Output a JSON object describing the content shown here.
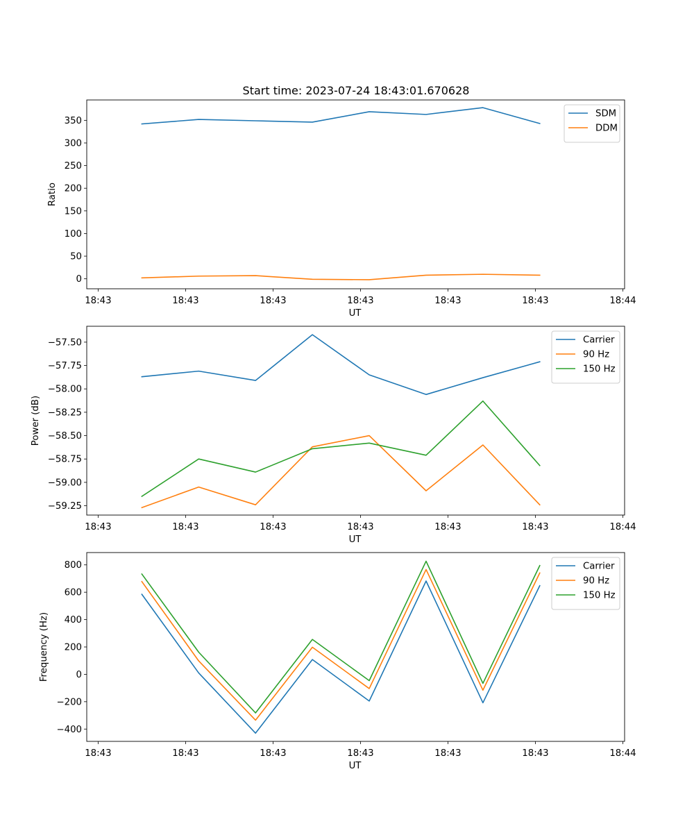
{
  "figure_title": "Start time: 2023-07-24 18:43:01.670628",
  "chart_data": [
    {
      "type": "line",
      "title": "Start time: 2023-07-24 18:43:01.670628",
      "xlabel": "UT",
      "ylabel": "Ratio",
      "x_ticks": [
        "18:43",
        "18:43",
        "18:43",
        "18:43",
        "18:43",
        "18:43",
        "18:44"
      ],
      "x_tick_positions": [
        0,
        1,
        2,
        3,
        4,
        5,
        6
      ],
      "x": [
        0.5,
        1.15,
        1.8,
        2.45,
        3.1,
        3.75,
        4.4,
        5.05
      ],
      "xlim": [
        -0.13,
        6.02
      ],
      "ylim": [
        -22,
        395
      ],
      "y_ticks": [
        0,
        50,
        100,
        150,
        200,
        250,
        300,
        350
      ],
      "legend_location": "upper right",
      "series": [
        {
          "name": "SDM",
          "color": "#1f77b4",
          "values": [
            342,
            352,
            349,
            346,
            369,
            363,
            378,
            343
          ]
        },
        {
          "name": "DDM",
          "color": "#ff7f0e",
          "values": [
            2,
            6,
            7,
            -1,
            -2,
            8,
            10,
            8
          ]
        }
      ]
    },
    {
      "type": "line",
      "title": "",
      "xlabel": "UT",
      "ylabel": "Power (dB)",
      "x_ticks": [
        "18:43",
        "18:43",
        "18:43",
        "18:43",
        "18:43",
        "18:43",
        "18:44"
      ],
      "x_tick_positions": [
        0,
        1,
        2,
        3,
        4,
        5,
        6
      ],
      "x": [
        0.5,
        1.15,
        1.8,
        2.45,
        3.1,
        3.75,
        4.4,
        5.05
      ],
      "xlim": [
        -0.13,
        6.02
      ],
      "ylim": [
        -59.35,
        -57.33
      ],
      "y_ticks": [
        -59.25,
        -59.0,
        -58.75,
        -58.5,
        -58.25,
        -58.0,
        -57.75,
        -57.5
      ],
      "y_tick_labels": [
        "−59.25",
        "−59.00",
        "−58.75",
        "−58.50",
        "−58.25",
        "−58.00",
        "−57.75",
        "−57.50"
      ],
      "legend_location": "upper right",
      "series": [
        {
          "name": "Carrier",
          "color": "#1f77b4",
          "values": [
            -57.87,
            -57.81,
            -57.91,
            -57.42,
            -57.85,
            -58.06,
            -57.88,
            -57.71
          ]
        },
        {
          "name": "90 Hz",
          "color": "#ff7f0e",
          "values": [
            -59.27,
            -59.05,
            -59.24,
            -58.62,
            -58.5,
            -59.09,
            -58.6,
            -59.24
          ]
        },
        {
          "name": "150 Hz",
          "color": "#2ca02c",
          "values": [
            -59.15,
            -58.75,
            -58.89,
            -58.64,
            -58.58,
            -58.71,
            -58.13,
            -58.82
          ]
        }
      ]
    },
    {
      "type": "line",
      "title": "",
      "xlabel": "UT",
      "ylabel": "Frequency (Hz)",
      "x_ticks": [
        "18:43",
        "18:43",
        "18:43",
        "18:43",
        "18:43",
        "18:43",
        "18:44"
      ],
      "x_tick_positions": [
        0,
        1,
        2,
        3,
        4,
        5,
        6
      ],
      "x": [
        0.5,
        1.15,
        1.8,
        2.45,
        3.1,
        3.75,
        4.4,
        5.05
      ],
      "xlim": [
        -0.13,
        6.02
      ],
      "ylim": [
        -490,
        890
      ],
      "y_ticks": [
        -400,
        -200,
        0,
        200,
        400,
        600,
        800
      ],
      "y_tick_labels": [
        "−400",
        "−200",
        "0",
        "200",
        "400",
        "600",
        "800"
      ],
      "legend_location": "upper right",
      "series": [
        {
          "name": "Carrier",
          "color": "#1f77b4",
          "values": [
            585,
            10,
            -430,
            108,
            -195,
            682,
            -208,
            648
          ]
        },
        {
          "name": "90 Hz",
          "color": "#ff7f0e",
          "values": [
            678,
            98,
            -335,
            198,
            -104,
            766,
            -116,
            741
          ]
        },
        {
          "name": "150 Hz",
          "color": "#2ca02c",
          "values": [
            733,
            162,
            -282,
            255,
            -46,
            827,
            -66,
            795
          ]
        }
      ]
    }
  ]
}
